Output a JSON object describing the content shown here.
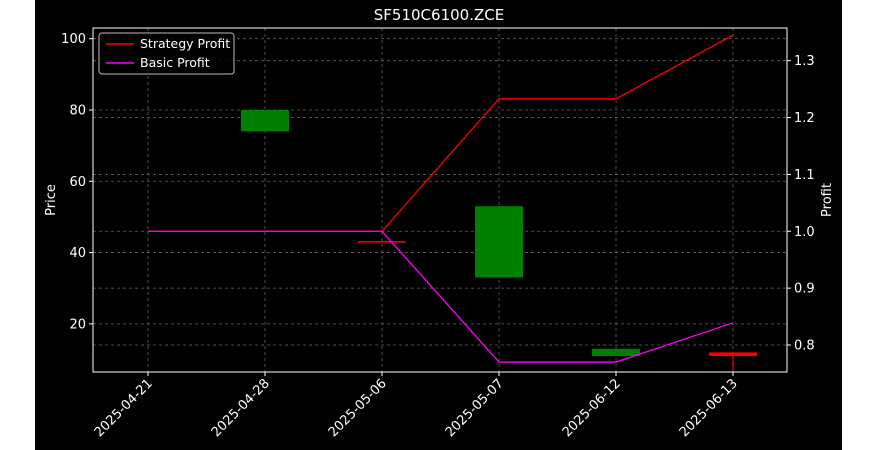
{
  "chart_data": {
    "type": "candlestick+line",
    "title": "SF510C6100.ZCE",
    "xlabel": "",
    "ylabel_left": "Price",
    "ylabel_right": "Profit",
    "categories": [
      "2025-04-21",
      "2025-04-28",
      "2025-05-06",
      "2025-05-07",
      "2025-06-12",
      "2025-06-13"
    ],
    "y_left": {
      "lim": [
        6.5,
        103
      ],
      "ticks": [
        20,
        40,
        60,
        80,
        100
      ]
    },
    "y_right": {
      "lim": [
        0.7525,
        1.3575
      ],
      "ticks": [
        0.8,
        0.9,
        1.0,
        1.1,
        1.2,
        1.3
      ]
    },
    "grid": true,
    "legend_position": "upper left",
    "candles": [
      {
        "date": "2025-04-21",
        "open": null,
        "high": null,
        "low": null,
        "close": null,
        "color": "#ff0000"
      },
      {
        "date": "2025-04-28",
        "open": 74,
        "high": 80,
        "low": 74,
        "close": 80,
        "color": "#008000"
      },
      {
        "date": "2025-05-06",
        "open": 43,
        "high": 43,
        "low": 43,
        "close": 43,
        "color": "#ff0000"
      },
      {
        "date": "2025-05-07",
        "open": 33,
        "high": 53,
        "low": 33,
        "close": 53,
        "color": "#008000"
      },
      {
        "date": "2025-06-12",
        "open": 11,
        "high": 13,
        "low": 11,
        "close": 13,
        "color": "#008000"
      },
      {
        "date": "2025-06-13",
        "open": 12,
        "high": 12,
        "low": 6.5,
        "close": 11,
        "color": "#ff0000"
      }
    ],
    "series": [
      {
        "name": "Strategy Profit",
        "color": "#ff0000",
        "values": [
          1.0,
          1.0,
          1.0,
          1.233,
          1.233,
          1.345
        ]
      },
      {
        "name": "Basic Profit",
        "color": "#ff00ff",
        "values": [
          1.0,
          1.0,
          1.0,
          0.77,
          0.77,
          0.839
        ]
      }
    ]
  }
}
